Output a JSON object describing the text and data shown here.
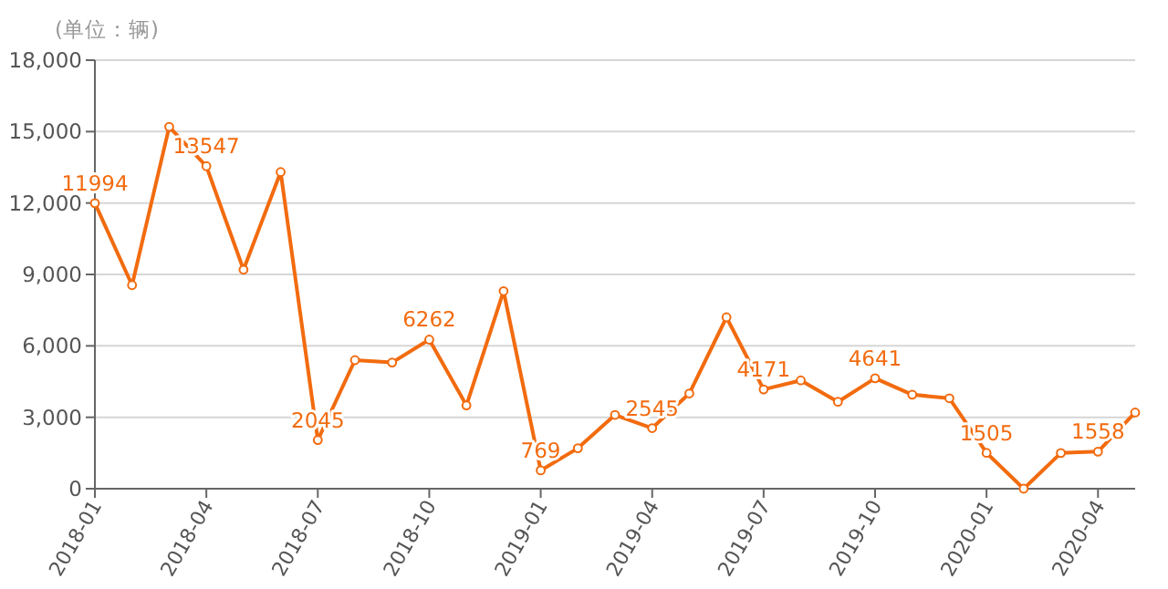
{
  "chart_data": {
    "type": "line",
    "ylabel": "(单位：辆)",
    "categories": [
      "2018-01",
      null,
      null,
      "2018-04",
      null,
      null,
      "2018-07",
      null,
      null,
      "2018-10",
      null,
      null,
      "2019-01",
      null,
      null,
      "2019-04",
      null,
      null,
      "2019-07",
      null,
      null,
      "2019-10",
      null,
      null,
      "2020-01",
      null,
      null,
      "2020-04",
      null
    ],
    "series": [
      {
        "color": "#f26b0f",
        "values": [
          11994,
          8550,
          15200,
          13547,
          9200,
          13300,
          2045,
          5400,
          5300,
          6262,
          3500,
          8300,
          769,
          1700,
          3100,
          2545,
          4000,
          7200,
          4171,
          4550,
          3650,
          4641,
          3950,
          3800,
          1505,
          0,
          1500,
          1558,
          3200
        ],
        "value_labels": [
          "11994",
          null,
          null,
          "13547",
          null,
          null,
          "2045",
          null,
          null,
          "6262",
          null,
          null,
          "769",
          null,
          null,
          "2545",
          null,
          null,
          "4171",
          null,
          null,
          "4641",
          null,
          null,
          "1505",
          null,
          null,
          "1558",
          null
        ]
      }
    ],
    "ylim": [
      0,
      18000
    ],
    "yticks": [
      {
        "value": 0,
        "label": "0"
      },
      {
        "value": 3000,
        "label": "3,000"
      },
      {
        "value": 6000,
        "label": "6,000"
      },
      {
        "value": 9000,
        "label": "9,000"
      },
      {
        "value": 12000,
        "label": "12,000"
      },
      {
        "value": 15000,
        "label": "15,000"
      },
      {
        "value": 18000,
        "label": "18,000"
      }
    ],
    "grid": "y",
    "marker": "circle",
    "line_style": "solid"
  }
}
